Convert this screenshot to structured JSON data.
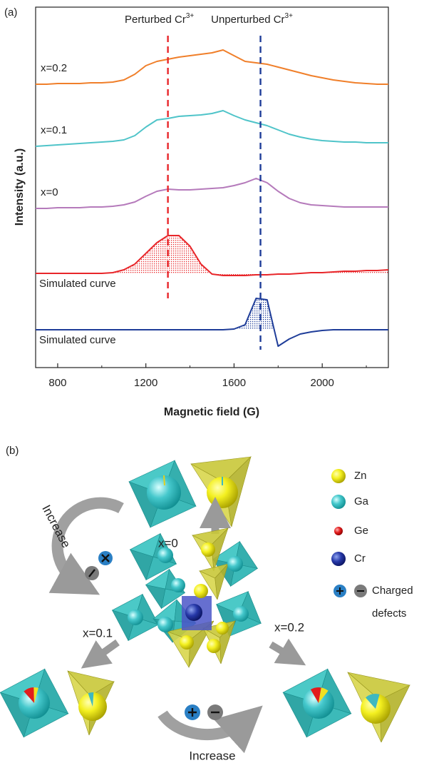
{
  "panel_labels": [
    "(a)",
    "(b)"
  ],
  "chart_data": {
    "type": "line",
    "x_label": "Magnetic field (G)",
    "y_label": "Intensity (a.u.)",
    "x": [
      700,
      750,
      800,
      850,
      900,
      950,
      1000,
      1050,
      1100,
      1150,
      1200,
      1250,
      1300,
      1350,
      1400,
      1450,
      1500,
      1550,
      1600,
      1650,
      1700,
      1750,
      1800,
      1850,
      1900,
      1950,
      2000,
      2050,
      2100,
      2150,
      2200,
      2250,
      2300
    ],
    "xlim": [
      700,
      2300
    ],
    "xticks": [
      800,
      1200,
      1600,
      2000
    ],
    "xminorticks": [
      1000,
      1400,
      1800,
      2200
    ],
    "ylim": [
      0,
      505
    ],
    "series": [
      {
        "name": "x=0.2",
        "color": "#f07f2a",
        "fill": false,
        "values": [
          397,
          397,
          398,
          398,
          398,
          399,
          399,
          400,
          403,
          411,
          423,
          429,
          432,
          435,
          437,
          439,
          441,
          445,
          437,
          429,
          427,
          425,
          421,
          417,
          413,
          409,
          406,
          403,
          401,
          399,
          398,
          397,
          397
        ]
      },
      {
        "name": "x=0.1",
        "color": "#4fc4c9",
        "fill": false,
        "values": [
          310,
          311,
          312,
          313,
          314,
          315,
          316,
          317,
          319,
          325,
          337,
          347,
          349,
          352,
          353,
          354,
          356,
          360,
          353,
          347,
          343,
          339,
          333,
          327,
          323,
          320,
          318,
          317,
          316,
          316,
          315,
          315,
          315
        ]
      },
      {
        "name": "x=0",
        "color": "#b57abb",
        "fill": false,
        "values": [
          223,
          223,
          224,
          224,
          224,
          225,
          225,
          226,
          228,
          232,
          240,
          247,
          250,
          249,
          249,
          250,
          251,
          252,
          255,
          259,
          265,
          259,
          247,
          237,
          231,
          228,
          227,
          226,
          225,
          225,
          225,
          225,
          225
        ]
      },
      {
        "name": "Simulated curve",
        "color": "#e8262a",
        "fill": true,
        "values": [
          132,
          132,
          132,
          132,
          132,
          132,
          132,
          133,
          137,
          145,
          160,
          175,
          185,
          185,
          170,
          145,
          131,
          129,
          129,
          129,
          130,
          130,
          131,
          131,
          132,
          133,
          133,
          134,
          135,
          135,
          136,
          136,
          137
        ]
      },
      {
        "name": "Simulated curve",
        "color": "#1f3d99",
        "fill": true,
        "values": [
          53,
          53,
          53,
          53,
          53,
          53,
          53,
          53,
          53,
          53,
          53,
          53,
          53,
          53,
          53,
          53,
          53,
          53,
          54,
          60,
          97,
          95,
          30,
          40,
          47,
          50,
          52,
          53,
          53,
          53,
          53,
          53,
          53
        ]
      }
    ],
    "annotations": [
      {
        "text": "Perturbed Cr",
        "sup": "3+",
        "x": 1300,
        "color": "#e8262a"
      },
      {
        "text": "Unperturbed Cr",
        "sup": "3+",
        "x": 1720,
        "color": "#1f3d99"
      }
    ]
  },
  "diagram": {
    "increase_labels": [
      "Increase",
      "Increase"
    ],
    "states": [
      "x=0",
      "x=0.1",
      "x=0.2"
    ],
    "legend": [
      {
        "label": "Zn"
      },
      {
        "label": "Ga"
      },
      {
        "label": "Ge"
      },
      {
        "label": "Cr"
      },
      {
        "label": [
          "Charged",
          "defects"
        ]
      }
    ]
  }
}
